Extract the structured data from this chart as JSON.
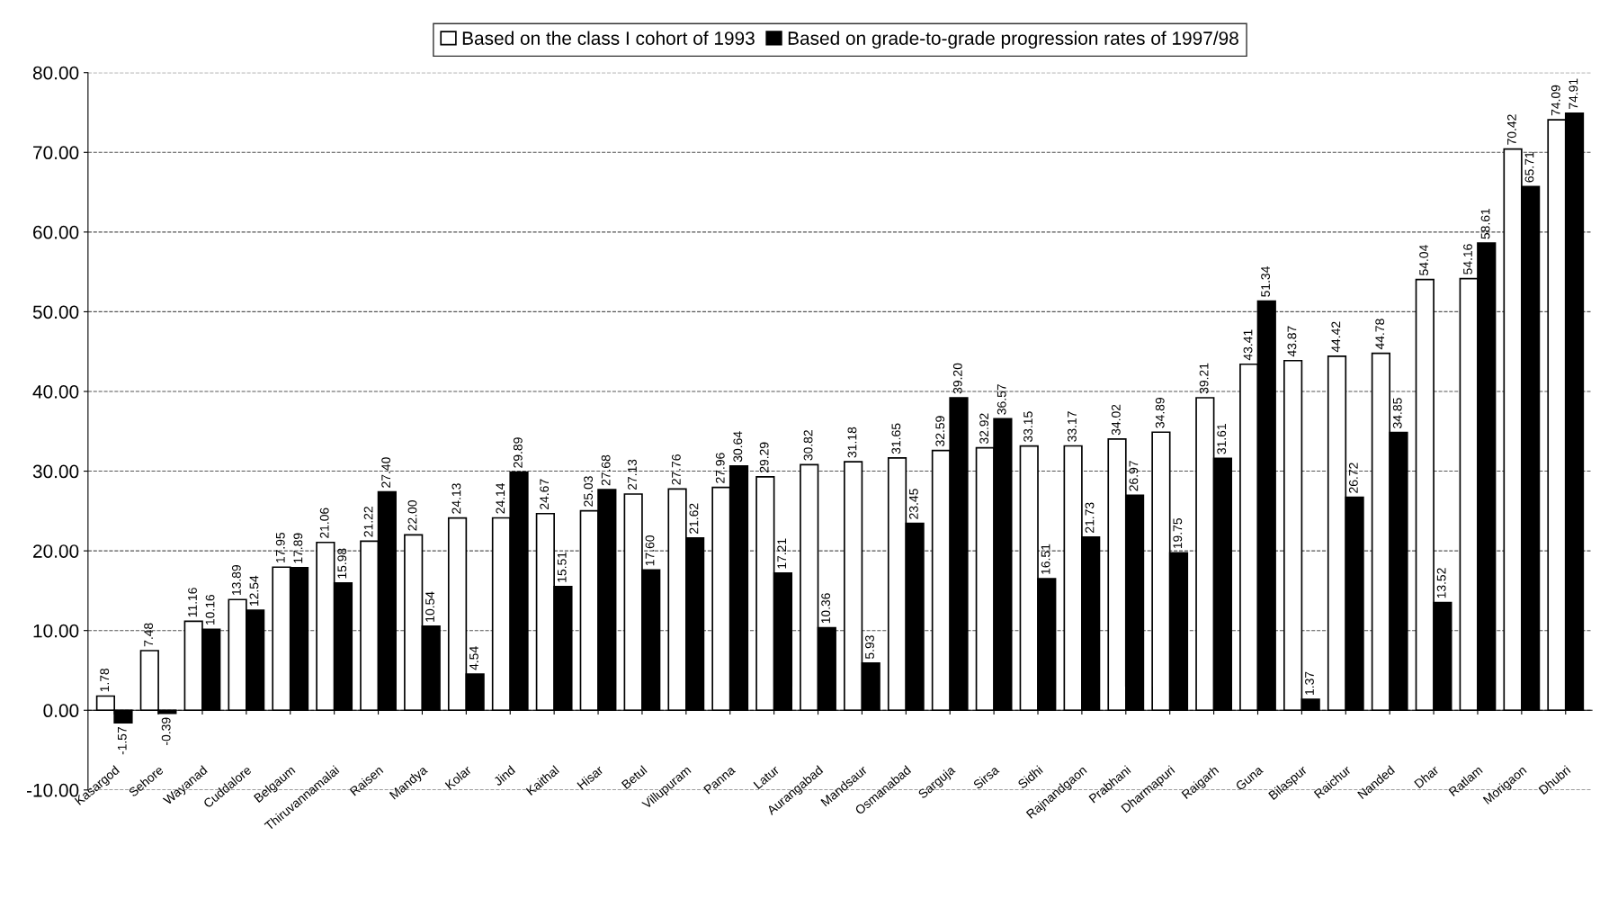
{
  "chart_data": {
    "type": "bar",
    "categories": [
      "Kasargod",
      "Sehore",
      "Wayanad",
      "Cuddalore",
      "Belgaum",
      "Thiruvannamalai",
      "Raisen",
      "Mandya",
      "Kolar",
      "Jind",
      "Kaithal",
      "Hisar",
      "Betul",
      "Villupuram",
      "Panna",
      "Latur",
      "Aurangabad",
      "Mandsaur",
      "Osmanabad",
      "Sarguja",
      "Sirsa",
      "Sidhi",
      "Rajnandgaon",
      "Prabhani",
      "Dharmapuri",
      "Raigarh",
      "Guna",
      "Bilaspur",
      "Raichur",
      "Nanded",
      "Dhar",
      "Ratlam",
      "Morigaon",
      "Dhubri"
    ],
    "series": [
      {
        "name": "Based on the class I cohort of 1993",
        "color": "#ffffff",
        "values": [
          1.78,
          7.48,
          11.16,
          13.89,
          17.95,
          21.06,
          21.22,
          22.0,
          24.13,
          24.14,
          24.67,
          25.03,
          27.13,
          27.76,
          27.96,
          29.29,
          30.82,
          31.18,
          31.65,
          32.59,
          32.92,
          33.15,
          33.17,
          34.02,
          34.89,
          39.21,
          43.41,
          43.87,
          44.42,
          44.78,
          54.04,
          54.16,
          70.42,
          74.09
        ],
        "value_labels": [
          "1.78",
          "7.48",
          "11.16",
          "13.89",
          "17.95",
          "21.06",
          "21.22",
          "22.00",
          "24.13",
          "24.14",
          "24.67",
          "25.03",
          "27.13",
          "27.76",
          "27.96",
          "29.29",
          "30.82",
          "31.18",
          "31.65",
          "32.59",
          "32.92",
          "33.15",
          "33.17",
          "34.02",
          "34.89",
          "39.21",
          "43.41",
          "43.87",
          "44.42",
          "44.78",
          "54.04",
          "54.16",
          "70.42",
          "74.09"
        ]
      },
      {
        "name": "Based on grade-to-grade progression rates of 1997/98",
        "color": "#000000",
        "values": [
          -1.57,
          -0.39,
          10.16,
          12.54,
          17.89,
          15.98,
          27.4,
          10.54,
          4.54,
          29.89,
          15.51,
          27.68,
          17.6,
          21.62,
          30.64,
          17.21,
          10.36,
          5.93,
          23.45,
          39.2,
          36.57,
          16.51,
          21.73,
          26.97,
          19.75,
          31.61,
          51.34,
          1.37,
          26.72,
          34.85,
          13.52,
          58.61,
          65.71,
          74.91
        ],
        "value_labels": [
          "-1.57",
          "-0.39",
          "10.16",
          "12.54",
          "17.89",
          "15.98",
          "27.40",
          "10.54",
          "4.54",
          "29.89",
          "15.51",
          "27.68",
          "17.60",
          "21.62",
          "30.64",
          "17.21",
          "10.36",
          "5.93",
          "23.45",
          "39.20",
          "36.57",
          "16.51",
          "21.73",
          "26.97",
          "19.75",
          "31.61",
          "51.34",
          "1.37",
          "26.72",
          "34.85",
          "13.52",
          "58.61",
          "65.71",
          "74.91"
        ]
      }
    ],
    "ylim": [
      -10,
      80
    ],
    "yticks": [
      {
        "value": -10,
        "label": "-10.00"
      },
      {
        "value": 0,
        "label": "0.00"
      },
      {
        "value": 10,
        "label": "10.00"
      },
      {
        "value": 20,
        "label": "20.00"
      },
      {
        "value": 30,
        "label": "30.00"
      },
      {
        "value": 40,
        "label": "40.00"
      },
      {
        "value": 50,
        "label": "50.00"
      },
      {
        "value": 60,
        "label": "60.00"
      },
      {
        "value": 70,
        "label": "70.00"
      },
      {
        "value": 80,
        "label": "80.00"
      }
    ],
    "grid": "y",
    "legend": "top"
  }
}
